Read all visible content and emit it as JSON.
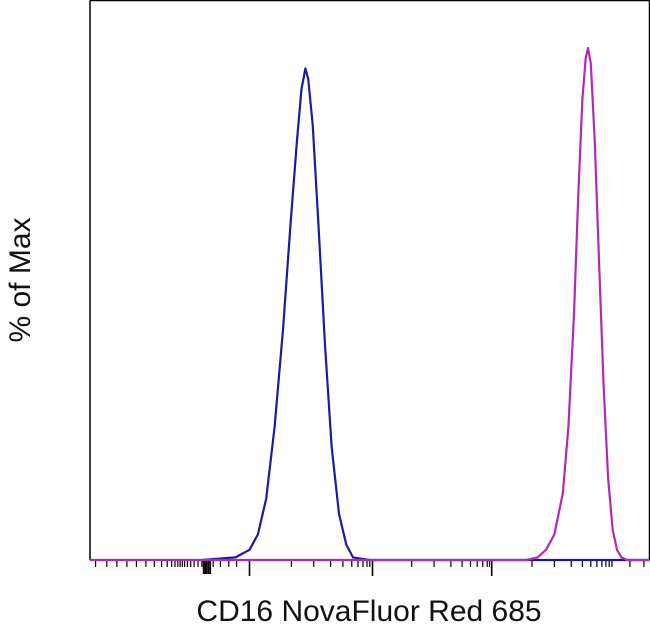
{
  "chart_data": {
    "type": "line",
    "title": "",
    "xlabel": "CD16 NovaFluor Red 685",
    "ylabel": "% of Max",
    "x_scale": "biexponential",
    "ylim": [
      0,
      100
    ],
    "grid": false,
    "legend": "none",
    "tick_labels_shown": false,
    "series": [
      {
        "color": "#1a1aa6",
        "points": [
          [
            0.2,
            0
          ],
          [
            0.26,
            0.5
          ],
          [
            0.285,
            2
          ],
          [
            0.3,
            5
          ],
          [
            0.315,
            12
          ],
          [
            0.33,
            26
          ],
          [
            0.345,
            45
          ],
          [
            0.358,
            65
          ],
          [
            0.37,
            82
          ],
          [
            0.378,
            92
          ],
          [
            0.385,
            96
          ],
          [
            0.39,
            94
          ],
          [
            0.398,
            85
          ],
          [
            0.408,
            66
          ],
          [
            0.42,
            42
          ],
          [
            0.432,
            22
          ],
          [
            0.445,
            9
          ],
          [
            0.458,
            3
          ],
          [
            0.47,
            0.5
          ],
          [
            0.5,
            0
          ],
          [
            1.0,
            0
          ]
        ]
      },
      {
        "color": "#b12ab4",
        "points": [
          [
            0.0,
            0
          ],
          [
            0.78,
            0
          ],
          [
            0.8,
            0.5
          ],
          [
            0.815,
            2
          ],
          [
            0.83,
            5
          ],
          [
            0.845,
            13
          ],
          [
            0.855,
            26
          ],
          [
            0.865,
            48
          ],
          [
            0.873,
            72
          ],
          [
            0.88,
            90
          ],
          [
            0.886,
            98
          ],
          [
            0.89,
            100
          ],
          [
            0.895,
            97
          ],
          [
            0.902,
            82
          ],
          [
            0.91,
            58
          ],
          [
            0.918,
            34
          ],
          [
            0.926,
            16
          ],
          [
            0.934,
            6
          ],
          [
            0.942,
            2
          ],
          [
            0.95,
            0.5
          ],
          [
            0.96,
            0
          ],
          [
            1.0,
            0
          ]
        ]
      }
    ]
  }
}
